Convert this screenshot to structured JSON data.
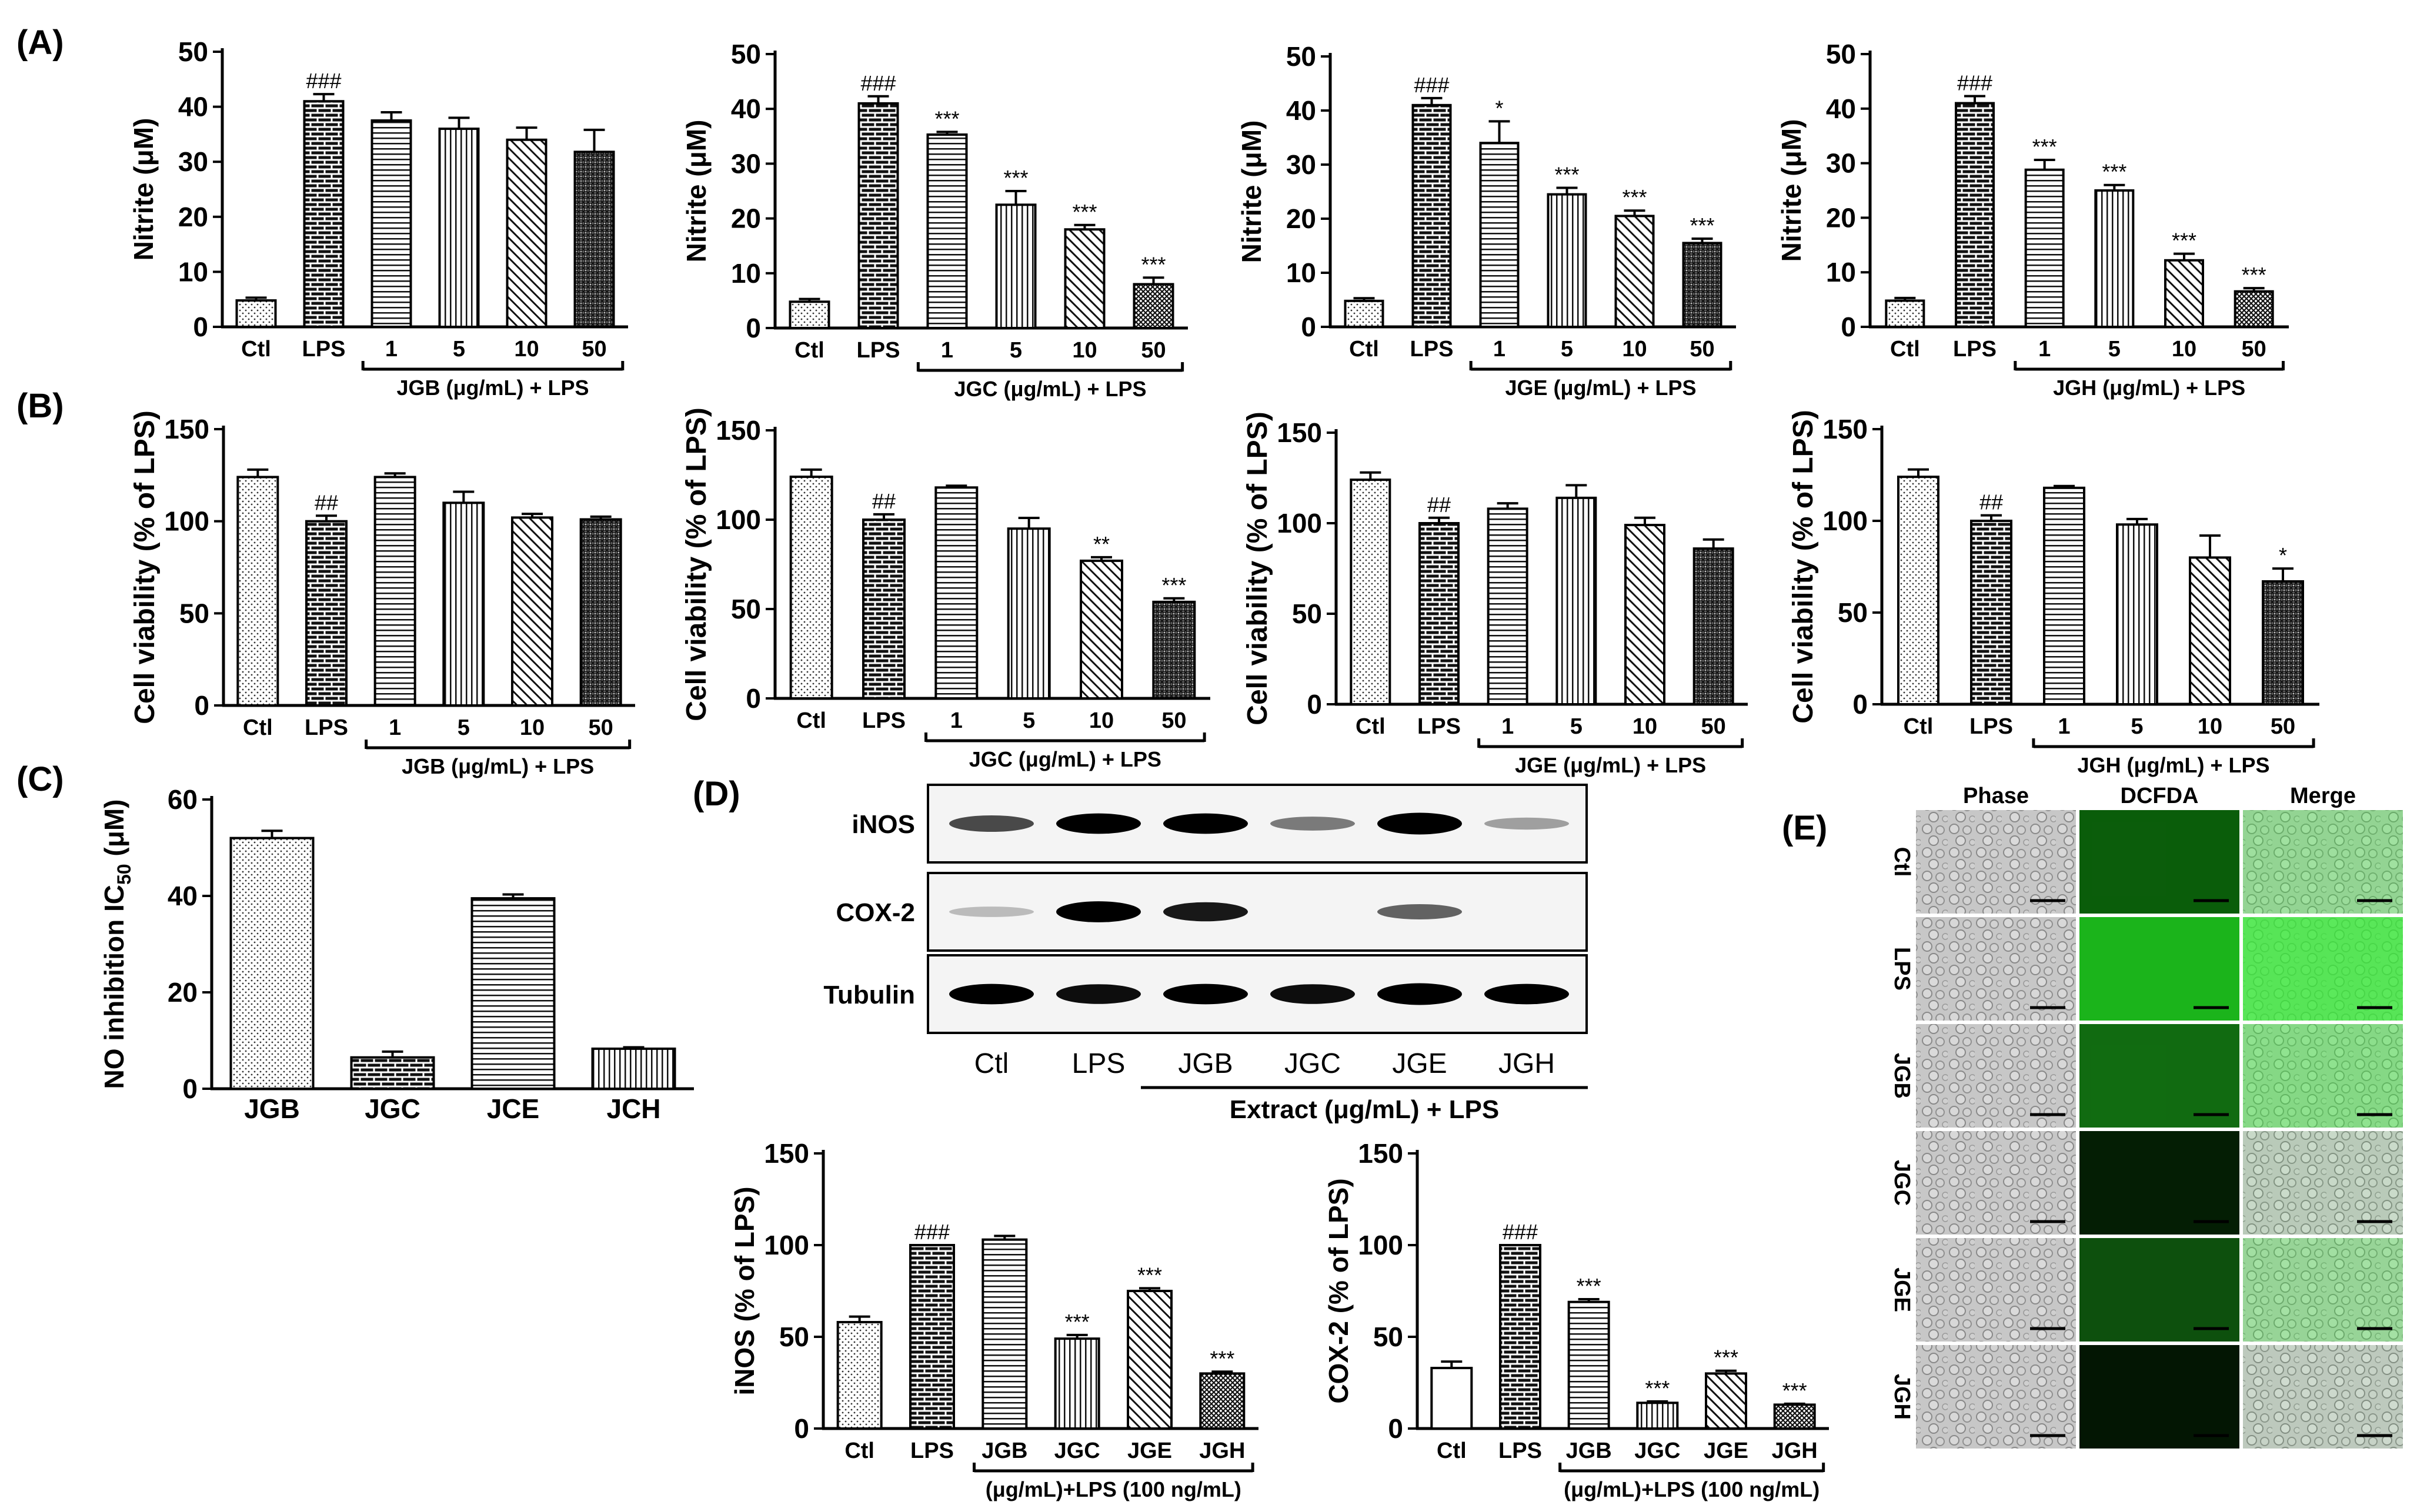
{
  "panels": {
    "A": "(A)",
    "B": "(B)",
    "C": "(C)",
    "D": "(D)",
    "E": "(E)"
  },
  "colors": {
    "ink": "#000000",
    "green": "#22dd22",
    "dark_green": "#0b3d0b",
    "gray": "#9a9a9a"
  },
  "chart_data": [
    {
      "id": "A1",
      "panel": "A",
      "type": "bar",
      "ylabel": "Nitrite (μM)",
      "ylim": [
        0,
        50
      ],
      "yticks": [
        0,
        10,
        20,
        30,
        40,
        50
      ],
      "categories": [
        "Ctl",
        "LPS",
        "1",
        "5",
        "10",
        "50"
      ],
      "values": [
        4.8,
        41,
        37.5,
        36,
        34,
        31.8
      ],
      "errors": [
        0.5,
        1.3,
        1.5,
        2.0,
        2.2,
        4.0
      ],
      "patterns": [
        "dots",
        "brick",
        "hlines",
        "vlines",
        "diag",
        "mix"
      ],
      "annotations": [
        "",
        "###",
        "",
        "",
        "",
        ""
      ],
      "group_label": "JGB (μg/mL) + LPS"
    },
    {
      "id": "A2",
      "panel": "A",
      "type": "bar",
      "ylabel": "Nitrite (μM)",
      "ylim": [
        0,
        50
      ],
      "yticks": [
        0,
        10,
        20,
        30,
        40,
        50
      ],
      "categories": [
        "Ctl",
        "LPS",
        "1",
        "5",
        "10",
        "50"
      ],
      "values": [
        4.8,
        41,
        35.3,
        22.5,
        18,
        8
      ],
      "errors": [
        0.5,
        1.3,
        0.5,
        2.5,
        0.8,
        1.2
      ],
      "patterns": [
        "dots",
        "brick",
        "hlines",
        "vlines",
        "diag",
        "cross"
      ],
      "annotations": [
        "",
        "###",
        "***",
        "***",
        "***",
        "***"
      ],
      "group_label": "JGC (μg/mL) + LPS"
    },
    {
      "id": "A3",
      "panel": "A",
      "type": "bar",
      "ylabel": "Nitrite (μM)",
      "ylim": [
        0,
        50
      ],
      "yticks": [
        0,
        10,
        20,
        30,
        40,
        50
      ],
      "categories": [
        "Ctl",
        "LPS",
        "1",
        "5",
        "10",
        "50"
      ],
      "values": [
        4.8,
        41,
        34,
        24.5,
        20.5,
        15.5
      ],
      "errors": [
        0.5,
        1.3,
        4.0,
        1.2,
        1.0,
        0.8
      ],
      "patterns": [
        "dots",
        "brick",
        "hlines",
        "vlines",
        "diag",
        "mix"
      ],
      "annotations": [
        "",
        "###",
        "*",
        "***",
        "***",
        "***"
      ],
      "group_label": "JGE (μg/mL) + LPS"
    },
    {
      "id": "A4",
      "panel": "A",
      "type": "bar",
      "ylabel": "Nitrite (μM)",
      "ylim": [
        0,
        50
      ],
      "yticks": [
        0,
        10,
        20,
        30,
        40,
        50
      ],
      "categories": [
        "Ctl",
        "LPS",
        "1",
        "5",
        "10",
        "50"
      ],
      "values": [
        4.8,
        41,
        28.8,
        25,
        12.2,
        6.5
      ],
      "errors": [
        0.5,
        1.3,
        1.8,
        1.0,
        1.2,
        0.6
      ],
      "patterns": [
        "dots",
        "brick",
        "hlines",
        "vlines",
        "diag",
        "cross"
      ],
      "annotations": [
        "",
        "###",
        "***",
        "***",
        "***",
        "***"
      ],
      "group_label": "JGH (μg/mL) + LPS"
    },
    {
      "id": "B1",
      "panel": "B",
      "type": "bar",
      "ylabel": "Cell viability (% of LPS)",
      "ylim": [
        0,
        150
      ],
      "yticks": [
        0,
        50,
        100,
        150
      ],
      "categories": [
        "Ctl",
        "LPS",
        "1",
        "5",
        "10",
        "50"
      ],
      "values": [
        124,
        100,
        124,
        110,
        102,
        101
      ],
      "errors": [
        4,
        3,
        2,
        6,
        2,
        1.5
      ],
      "patterns": [
        "dots",
        "brick",
        "hlines",
        "vlines",
        "diag",
        "mix"
      ],
      "annotations": [
        "",
        "##",
        "",
        "",
        "",
        ""
      ],
      "group_label": "JGB (μg/mL) + LPS"
    },
    {
      "id": "B2",
      "panel": "B",
      "type": "bar",
      "ylabel": "Cell viability (% of LPS)",
      "ylim": [
        0,
        150
      ],
      "yticks": [
        0,
        50,
        100,
        150
      ],
      "categories": [
        "Ctl",
        "LPS",
        "1",
        "5",
        "10",
        "50"
      ],
      "values": [
        124,
        100,
        118,
        95,
        77,
        54
      ],
      "errors": [
        4,
        3,
        1,
        6,
        2,
        2
      ],
      "patterns": [
        "dots",
        "brick",
        "hlines",
        "vlines",
        "diag",
        "mix"
      ],
      "annotations": [
        "",
        "##",
        "",
        "",
        "**",
        "***"
      ],
      "group_label": "JGC (μg/mL) + LPS"
    },
    {
      "id": "B3",
      "panel": "B",
      "type": "bar",
      "ylabel": "Cell viability (% of LPS)",
      "ylim": [
        0,
        150
      ],
      "yticks": [
        0,
        50,
        100,
        150
      ],
      "categories": [
        "Ctl",
        "LPS",
        "1",
        "5",
        "10",
        "50"
      ],
      "values": [
        124,
        100,
        108,
        114,
        99,
        86
      ],
      "errors": [
        4,
        3,
        3,
        7,
        4,
        5
      ],
      "patterns": [
        "dots",
        "brick",
        "hlines",
        "vlines",
        "diag",
        "mix"
      ],
      "annotations": [
        "",
        "##",
        "",
        "",
        "",
        ""
      ],
      "group_label": "JGE (μg/mL) + LPS"
    },
    {
      "id": "B4",
      "panel": "B",
      "type": "bar",
      "ylabel": "Cell viability (% of LPS)",
      "ylim": [
        0,
        150
      ],
      "yticks": [
        0,
        50,
        100,
        150
      ],
      "categories": [
        "Ctl",
        "LPS",
        "1",
        "5",
        "10",
        "50"
      ],
      "values": [
        124,
        100,
        118,
        98,
        80,
        67
      ],
      "errors": [
        4,
        3,
        1,
        3,
        12,
        7
      ],
      "patterns": [
        "dots",
        "brick",
        "hlines",
        "vlines",
        "diag",
        "mix"
      ],
      "annotations": [
        "",
        "##",
        "",
        "",
        "",
        "*"
      ],
      "group_label": "JGH (μg/mL) + LPS"
    },
    {
      "id": "C",
      "panel": "C",
      "type": "bar",
      "ylabel": "NO inhibition IC",
      "ylabel_sub": "50",
      "ylabel_unit": " (μM)",
      "ylim": [
        0,
        60
      ],
      "yticks": [
        0,
        20,
        40,
        60
      ],
      "categories": [
        "JGB",
        "JGC",
        "JCE",
        "JCH"
      ],
      "values": [
        52,
        6.5,
        39.5,
        8.3
      ],
      "errors": [
        1.5,
        1.2,
        0.8,
        0.3
      ],
      "patterns": [
        "dots",
        "brick",
        "hlines",
        "vlines"
      ],
      "annotations": [
        "",
        "",
        "",
        ""
      ]
    },
    {
      "id": "D1",
      "panel": "D",
      "type": "bar",
      "ylabel": "iNOS (% of LPS)",
      "ylim": [
        0,
        150
      ],
      "yticks": [
        0,
        50,
        100,
        150
      ],
      "categories": [
        "Ctl",
        "LPS",
        "JGB",
        "JGC",
        "JGE",
        "JGH"
      ],
      "values": [
        58,
        100,
        103,
        49,
        75,
        30
      ],
      "errors": [
        3,
        0,
        2,
        2,
        1.5,
        1
      ],
      "patterns": [
        "dots",
        "brick",
        "hlines",
        "vlines",
        "diag",
        "cross"
      ],
      "annotations": [
        "",
        "###",
        "",
        "***",
        "***",
        "***"
      ],
      "group_label": "(μg/mL)+LPS (100 ng/mL)"
    },
    {
      "id": "D2",
      "panel": "D",
      "type": "bar",
      "ylabel": "COX-2 (% of LPS)",
      "ylim": [
        0,
        150
      ],
      "yticks": [
        0,
        50,
        100,
        150
      ],
      "categories": [
        "Ctl",
        "LPS",
        "JGB",
        "JGC",
        "JGE",
        "JGH"
      ],
      "values": [
        33,
        100,
        69,
        14,
        30,
        13
      ],
      "errors": [
        3.5,
        0,
        1.5,
        0.8,
        1.5,
        0.5
      ],
      "patterns": [
        "empty",
        "brick",
        "hlines",
        "vlines",
        "diag",
        "cross"
      ],
      "annotations": [
        "",
        "###",
        "***",
        "***",
        "***",
        "***"
      ],
      "group_label": "(μg/mL)+LPS (100 ng/mL)"
    }
  ],
  "western": {
    "rows": [
      "iNOS",
      "COX-2",
      "Tubulin"
    ],
    "lanes": [
      "Ctl",
      "LPS",
      "JGB",
      "JGC",
      "JGE",
      "JGH"
    ],
    "group_label": "Extract (μg/mL) + LPS",
    "intensity": [
      [
        0.55,
        0.85,
        0.85,
        0.35,
        0.95,
        0.2
      ],
      [
        0.08,
        0.9,
        0.75,
        0,
        0.45,
        0
      ],
      [
        0.85,
        0.8,
        0.85,
        0.8,
        0.95,
        0.85
      ]
    ]
  },
  "microscopy": {
    "columns": [
      "Phase",
      "DCFDA",
      "Merge"
    ],
    "rows": [
      "Ctl",
      "LPS",
      "JGB",
      "JGC",
      "JGE",
      "JGH"
    ],
    "fluorescence": [
      0.03,
      0.95,
      0.55,
      0.12,
      0.4,
      0.08
    ]
  }
}
